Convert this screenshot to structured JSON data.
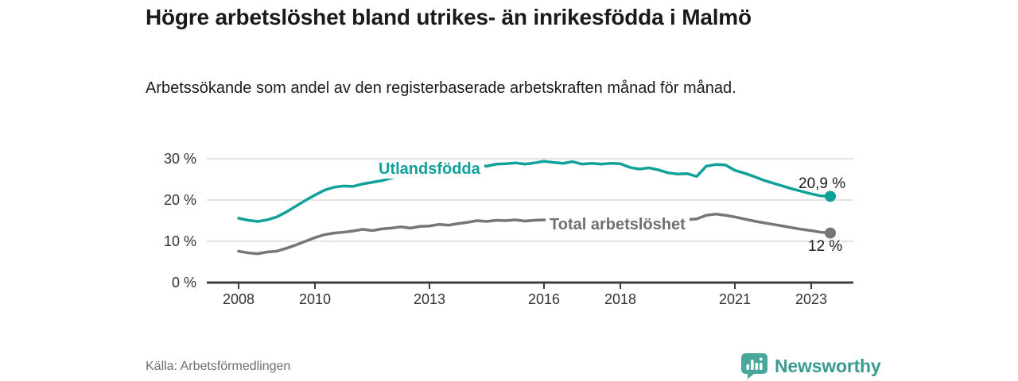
{
  "header": {
    "title": "Högre arbetslöshet bland utrikes- än inrikesfödda i Malmö",
    "subtitle": "Arbetssökande som andel av den registerbaserade arbetskraften månad för månad."
  },
  "footer": {
    "source": "Källa: Arbetsförmedlingen",
    "brand": "Newsworthy",
    "brand_icon": "bar-chart-speech-bubble-icon"
  },
  "colors": {
    "accent_teal": "#12a09a",
    "series_gray": "#76767a",
    "gridline": "#dcdcdc",
    "axis": "#3d3d3d",
    "axis_text": "#333333",
    "value_text": "#1a1a1a",
    "source_text": "#6f6f6f",
    "brand_teal": "#3a9b92",
    "brand_badge": "#4aa79c"
  },
  "chart_data": {
    "type": "line",
    "title": "Högre arbetslöshet bland utrikes- än inrikesfödda i Malmö",
    "xlabel": "",
    "ylabel": "Arbetssökande som andel av den registerbaserade arbetskraften",
    "grid": "horizontal",
    "legend_position": "inline-on-line",
    "x_start_year": 2008,
    "x_end_year": 2023.5,
    "points_per_year": 4,
    "x_tick_years": [
      2008,
      2010,
      2013,
      2016,
      2018,
      2021,
      2023
    ],
    "x_tick_labels": [
      "2008",
      "2010",
      "2013",
      "2016",
      "2018",
      "2021",
      "2023"
    ],
    "y_tick_values": [
      0,
      10,
      20,
      30
    ],
    "y_tick_labels": [
      "0 %",
      "10 %",
      "20 %",
      "30 %"
    ],
    "ylim": [
      0,
      32
    ],
    "series": [
      {
        "name": "Utlandsfödda",
        "slug": "utlandsfodda",
        "color": "#12a09a",
        "end_label": "20,9 %",
        "end_value": 20.9,
        "values": [
          15.6,
          15.1,
          14.8,
          15.2,
          15.9,
          17.1,
          18.5,
          19.9,
          21.2,
          22.4,
          23.1,
          23.4,
          23.3,
          23.9,
          24.3,
          24.7,
          25.3,
          25.9,
          26.2,
          26.5,
          26.9,
          27.4,
          27.2,
          27.7,
          28.0,
          28.4,
          28.2,
          28.7,
          28.8,
          29.0,
          28.7,
          29.0,
          29.4,
          29.1,
          28.9,
          29.3,
          28.7,
          28.9,
          28.7,
          28.9,
          28.8,
          27.9,
          27.5,
          27.8,
          27.3,
          26.6,
          26.3,
          26.4,
          25.7,
          28.2,
          28.6,
          28.5,
          27.2,
          26.5,
          25.7,
          24.8,
          24.1,
          23.4,
          22.7,
          22.1,
          21.5,
          21.0,
          20.9
        ]
      },
      {
        "name": "Total arbetslöshet",
        "slug": "total-arbetsloshet",
        "color": "#76767a",
        "end_label": "12 %",
        "end_value": 12.0,
        "values": [
          7.6,
          7.2,
          7.0,
          7.4,
          7.6,
          8.3,
          9.1,
          10.0,
          10.9,
          11.6,
          12.0,
          12.2,
          12.5,
          12.9,
          12.6,
          13.0,
          13.2,
          13.5,
          13.2,
          13.6,
          13.7,
          14.1,
          13.9,
          14.3,
          14.6,
          15.0,
          14.8,
          15.1,
          15.0,
          15.2,
          14.9,
          15.1,
          15.2,
          15.0,
          14.8,
          15.1,
          15.0,
          15.2,
          14.9,
          15.1,
          15.1,
          14.8,
          14.6,
          14.9,
          14.7,
          14.9,
          15.1,
          15.3,
          15.4,
          16.3,
          16.6,
          16.3,
          15.9,
          15.4,
          14.9,
          14.5,
          14.1,
          13.7,
          13.3,
          12.9,
          12.6,
          12.2,
          12.0
        ]
      }
    ]
  }
}
